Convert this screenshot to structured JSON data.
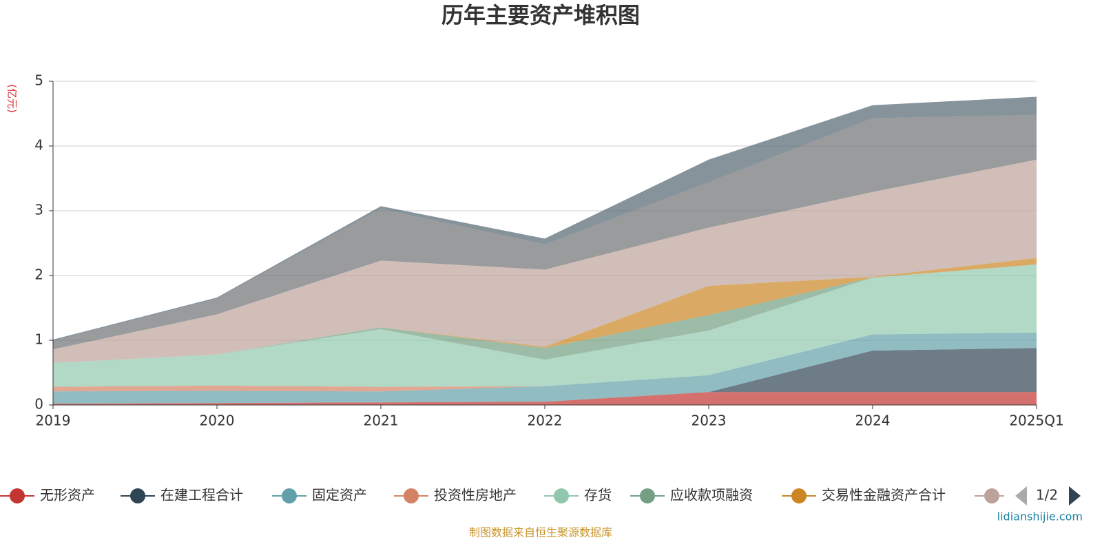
{
  "chart_data": {
    "type": "area",
    "stacked": true,
    "title": "历年主要资产堆积图",
    "y_axis_label": "(亿元)",
    "categories": [
      "2019",
      "2020",
      "2021",
      "2022",
      "2023",
      "2024",
      "2025Q1"
    ],
    "ylim": [
      0,
      5
    ],
    "yticks": [
      0,
      1,
      2,
      3,
      4,
      5
    ],
    "grid": true,
    "series": [
      {
        "name": "无形资产",
        "color": "#c23531",
        "values": [
          0.02,
          0.03,
          0.04,
          0.05,
          0.2,
          0.2,
          0.2
        ]
      },
      {
        "name": "在建工程合计",
        "color": "#2f4554",
        "values": [
          0,
          0,
          0,
          0,
          0,
          0.64,
          0.68
        ]
      },
      {
        "name": "固定资产",
        "color": "#61a0a8",
        "values": [
          0.19,
          0.19,
          0.17,
          0.24,
          0.26,
          0.25,
          0.24
        ]
      },
      {
        "name": "投资性房地产",
        "color": "#d48265",
        "values": [
          0.07,
          0.08,
          0.07,
          0,
          0,
          0,
          0
        ]
      },
      {
        "name": "存货",
        "color": "#91c7ae",
        "values": [
          0.37,
          0.48,
          0.89,
          0.41,
          0.69,
          0.88,
          1.05
        ]
      },
      {
        "name": "应收款项融资",
        "color": "#749f83",
        "values": [
          0,
          0,
          0.03,
          0.18,
          0.24,
          0,
          0
        ]
      },
      {
        "name": "交易性金融资产合计",
        "color": "#ca8622",
        "values": [
          0,
          0,
          0,
          0.02,
          0.45,
          0.01,
          0.1
        ]
      },
      {
        "color": "#bda29a",
        "values": [
          0.21,
          0.62,
          1.03,
          1.19,
          0.9,
          1.31,
          1.52
        ]
      },
      {
        "color": "#6e7074",
        "values": [
          0.13,
          0.24,
          0.8,
          0.39,
          0.7,
          1.14,
          0.69
        ]
      },
      {
        "color": "#546570",
        "values": [
          0.02,
          0.02,
          0.04,
          0.09,
          0.35,
          0.2,
          0.28
        ]
      }
    ],
    "legend_page": "1/2"
  },
  "source": "制图数据来自恒生聚源数据库",
  "watermark": "lidianshijie.com"
}
